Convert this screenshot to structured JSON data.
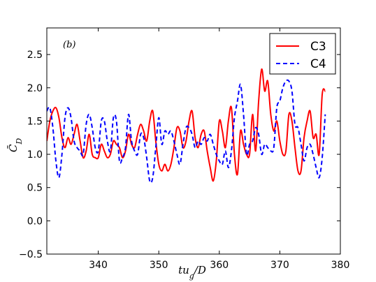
{
  "chart_data": {
    "type": "line",
    "panel_label": "(b)",
    "xlabel": "tu_g/D",
    "ylabel": "C̄_D",
    "xlim": [
      331.5,
      380
    ],
    "ylim": [
      -0.5,
      2.9
    ],
    "xticks": [
      340,
      350,
      360,
      370,
      380
    ],
    "xtick_labels": [
      "340",
      "350",
      "360",
      "370",
      "380"
    ],
    "yticks": [
      -0.5,
      0.0,
      0.5,
      1.0,
      1.5,
      2.0,
      2.5
    ],
    "ytick_labels": [
      "−0.5",
      "0.0",
      "0.5",
      "1.0",
      "1.5",
      "2.0",
      "2.5"
    ],
    "legend_position": "top-right",
    "series": [
      {
        "name": "C3",
        "color": "#ff0000",
        "style": "solid",
        "x": [
          331.5,
          332,
          332.5,
          333,
          333.5,
          334,
          334.5,
          335,
          335.5,
          336,
          336.5,
          337,
          337.5,
          338,
          338.5,
          339,
          339.5,
          340,
          340.5,
          341,
          341.5,
          342,
          342.5,
          343,
          343.5,
          344,
          344.5,
          345,
          345.5,
          346,
          346.5,
          347,
          347.5,
          348,
          348.5,
          349,
          349.5,
          350,
          350.5,
          351,
          351.5,
          352,
          352.5,
          353,
          353.5,
          354,
          354.5,
          355,
          355.5,
          356,
          356.5,
          357,
          357.5,
          358,
          358.5,
          359,
          359.5,
          360,
          360.5,
          361,
          361.5,
          362,
          362.5,
          363,
          363.5,
          364,
          364.5,
          365,
          365.5,
          366,
          366.5,
          367,
          367.5,
          368,
          368.5,
          369,
          369.5,
          370,
          370.5,
          371,
          371.5,
          372,
          372.5,
          373,
          373.5,
          374,
          374.5,
          375,
          375.5,
          376,
          376.5,
          377,
          377.5
        ],
        "values": [
          1.2,
          1.5,
          1.65,
          1.7,
          1.55,
          1.25,
          1.1,
          1.25,
          1.15,
          1.3,
          1.45,
          1.2,
          0.95,
          1.05,
          1.3,
          1.0,
          0.95,
          0.95,
          1.15,
          1.05,
          0.95,
          1.0,
          1.2,
          1.15,
          1.1,
          0.95,
          1.05,
          1.3,
          1.15,
          1.1,
          1.3,
          1.45,
          1.35,
          1.2,
          1.5,
          1.65,
          1.2,
          0.85,
          0.75,
          0.85,
          0.75,
          0.85,
          1.1,
          1.4,
          1.35,
          1.1,
          1.2,
          1.5,
          1.65,
          1.25,
          1.1,
          1.3,
          1.35,
          1.05,
          0.8,
          0.6,
          0.9,
          1.5,
          1.35,
          1.1,
          1.5,
          1.7,
          1.0,
          0.7,
          1.35,
          1.15,
          1.0,
          1.0,
          1.6,
          1.05,
          1.8,
          2.28,
          1.95,
          2.1,
          1.6,
          1.35,
          1.5,
          1.2,
          1.0,
          1.05,
          1.6,
          1.5,
          1.1,
          0.75,
          0.75,
          1.25,
          1.5,
          1.65,
          1.25,
          1.3,
          1.0,
          1.9,
          1.95
        ]
      },
      {
        "name": "C4",
        "color": "#0000ff",
        "style": "dashed",
        "x": [
          331.5,
          332,
          332.5,
          333,
          333.5,
          334,
          334.5,
          335,
          335.5,
          336,
          336.5,
          337,
          337.5,
          338,
          338.5,
          339,
          339.5,
          340,
          340.5,
          341,
          341.5,
          342,
          342.5,
          343,
          343.5,
          344,
          344.5,
          345,
          345.5,
          346,
          346.5,
          347,
          347.5,
          348,
          348.5,
          349,
          349.5,
          350,
          350.5,
          351,
          351.5,
          352,
          352.5,
          353,
          353.5,
          354,
          354.5,
          355,
          355.5,
          356,
          356.5,
          357,
          357.5,
          358,
          358.5,
          359,
          359.5,
          360,
          360.5,
          361,
          361.5,
          362,
          362.5,
          363,
          363.5,
          364,
          364.5,
          365,
          365.5,
          366,
          366.5,
          367,
          367.5,
          368,
          368.5,
          369,
          369.5,
          370,
          370.5,
          371,
          371.5,
          372,
          372.5,
          373,
          373.5,
          374,
          374.5,
          375,
          375.5,
          376,
          376.5,
          377,
          377.5
        ],
        "values": [
          1.65,
          1.7,
          1.4,
          0.9,
          0.65,
          1.0,
          1.55,
          1.7,
          1.55,
          1.2,
          1.1,
          1.05,
          1.0,
          1.45,
          1.6,
          1.4,
          1.1,
          1.05,
          1.5,
          1.5,
          1.2,
          1.05,
          1.55,
          1.5,
          0.9,
          0.95,
          1.1,
          1.6,
          1.2,
          1.05,
          1.0,
          1.3,
          1.25,
          0.95,
          0.6,
          0.65,
          1.1,
          1.55,
          1.15,
          1.35,
          1.3,
          1.35,
          1.2,
          1.0,
          0.85,
          1.15,
          1.4,
          1.4,
          1.3,
          1.1,
          1.2,
          1.15,
          1.25,
          1.2,
          1.3,
          1.15,
          1.0,
          0.9,
          0.85,
          1.05,
          0.8,
          1.05,
          1.55,
          1.8,
          2.05,
          1.6,
          1.0,
          1.15,
          1.2,
          1.4,
          1.3,
          1.0,
          1.15,
          1.1,
          1.05,
          1.1,
          1.7,
          1.8,
          2.0,
          2.1,
          2.1,
          1.95,
          1.45,
          1.4,
          1.15,
          0.9,
          1.1,
          1.15,
          1.0,
          0.8,
          0.65,
          0.95,
          1.6
        ]
      }
    ]
  }
}
